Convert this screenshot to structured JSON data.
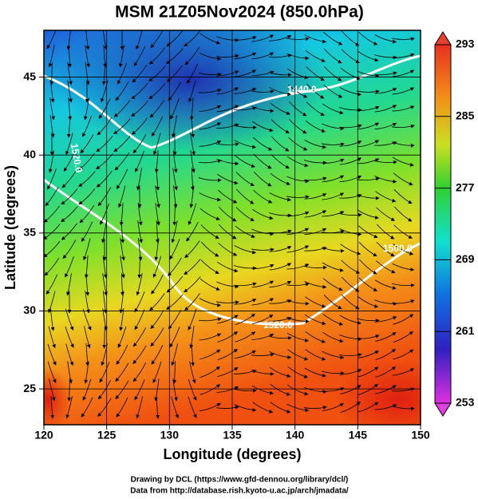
{
  "chart_data": {
    "type": "map",
    "title": "MSM 21Z05Nov2024 (850.0hPa)",
    "xlabel": "Longitude (degrees)",
    "ylabel": "Latitude  (degrees)",
    "xlim": [
      120,
      150
    ],
    "ylim": [
      22.7,
      48
    ],
    "xticks": [
      120,
      125,
      130,
      135,
      140,
      145,
      150
    ],
    "yticks": [
      25,
      30,
      35,
      40,
      45
    ],
    "grid": true,
    "colorbar": {
      "lim": [
        253,
        293
      ],
      "ticks": [
        253,
        261,
        269,
        277,
        285,
        293
      ]
    },
    "contour_labels": [
      "1440.0",
      "1520.0",
      "1520.0",
      "1500.0"
    ]
  },
  "credits": [
    "Drawing by DCL (https://www.gfd-dennou.org/library/dcl/)",
    "Data from http://database.rish.kyoto-u.ac.jp/arch/jmadata/"
  ]
}
